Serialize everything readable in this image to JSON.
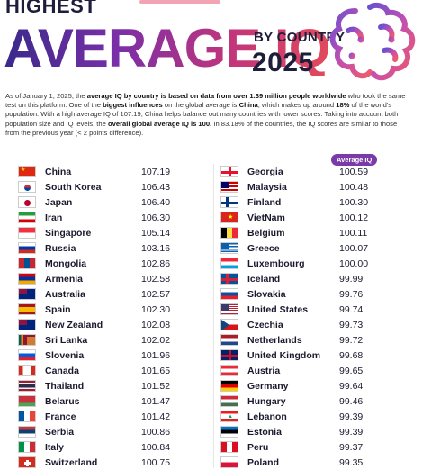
{
  "header": {
    "kicker": "HIGHEST",
    "headline": "AVERAGE IQ",
    "subtitle": "BY COUNTRY",
    "year": "2025"
  },
  "intro": {
    "p1": "As of January 1, 2025, the ",
    "b1": "average IQ by country is based on data from over 1.39 million people worldwide",
    "p2": " who took the same test on this platform. One of the ",
    "b2": "biggest influences",
    "p3": " on the global average is ",
    "b3": "China",
    "p4": ", which makes up around ",
    "b4": "18%",
    "p5": " of the world's population. With a high average IQ of 107.19, China helps balance out many countries with lower scores. Taking into account both population size and IQ levels, the ",
    "b5": "overall global average IQ is 100.",
    "p6": " In 83.18% of the countries, the IQ scores are similar to those from the previous year (< 2 points difference)."
  },
  "column_label": "Average IQ",
  "left_rows": [
    {
      "country": "China",
      "iq": "107.19",
      "flag": "china"
    },
    {
      "country": "South Korea",
      "iq": "106.43",
      "flag": "south-korea"
    },
    {
      "country": "Japan",
      "iq": "106.40",
      "flag": "japan"
    },
    {
      "country": "Iran",
      "iq": "106.30",
      "flag": "iran"
    },
    {
      "country": "Singapore",
      "iq": "105.14",
      "flag": "singapore"
    },
    {
      "country": "Russia",
      "iq": "103.16",
      "flag": "russia"
    },
    {
      "country": "Mongolia",
      "iq": "102.86",
      "flag": "mongolia"
    },
    {
      "country": "Armenia",
      "iq": "102.58",
      "flag": "armenia"
    },
    {
      "country": "Australia",
      "iq": "102.57",
      "flag": "australia"
    },
    {
      "country": "Spain",
      "iq": "102.30",
      "flag": "spain"
    },
    {
      "country": "New Zealand",
      "iq": "102.08",
      "flag": "new-zealand"
    },
    {
      "country": "Sri Lanka",
      "iq": "102.02",
      "flag": "sri-lanka"
    },
    {
      "country": "Slovenia",
      "iq": "101.96",
      "flag": "slovenia"
    },
    {
      "country": "Canada",
      "iq": "101.65",
      "flag": "canada"
    },
    {
      "country": "Thailand",
      "iq": "101.52",
      "flag": "thailand"
    },
    {
      "country": "Belarus",
      "iq": "101.47",
      "flag": "belarus"
    },
    {
      "country": "France",
      "iq": "101.42",
      "flag": "france"
    },
    {
      "country": "Serbia",
      "iq": "100.86",
      "flag": "serbia"
    },
    {
      "country": "Italy",
      "iq": "100.84",
      "flag": "italy"
    },
    {
      "country": "Switzerland",
      "iq": "100.75",
      "flag": "switzerland"
    }
  ],
  "right_rows": [
    {
      "country": "Georgia",
      "iq": "100.59",
      "flag": "georgia"
    },
    {
      "country": "Malaysia",
      "iq": "100.48",
      "flag": "malaysia"
    },
    {
      "country": "Finland",
      "iq": "100.30",
      "flag": "finland"
    },
    {
      "country": "VietNam",
      "iq": "100.12",
      "flag": "vietnam"
    },
    {
      "country": "Belgium",
      "iq": "100.11",
      "flag": "belgium"
    },
    {
      "country": "Greece",
      "iq": "100.07",
      "flag": "greece"
    },
    {
      "country": "Luxembourg",
      "iq": "100.00",
      "flag": "luxembourg"
    },
    {
      "country": "Iceland",
      "iq": "99.99",
      "flag": "iceland"
    },
    {
      "country": "Slovakia",
      "iq": "99.76",
      "flag": "slovakia"
    },
    {
      "country": "United States",
      "iq": "99.74",
      "flag": "united-states"
    },
    {
      "country": "Czechia",
      "iq": "99.73",
      "flag": "czechia"
    },
    {
      "country": "Netherlands",
      "iq": "99.72",
      "flag": "netherlands"
    },
    {
      "country": "United Kingdom",
      "iq": "99.68",
      "flag": "united-kingdom"
    },
    {
      "country": "Austria",
      "iq": "99.65",
      "flag": "austria"
    },
    {
      "country": "Germany",
      "iq": "99.64",
      "flag": "germany"
    },
    {
      "country": "Hungary",
      "iq": "99.46",
      "flag": "hungary"
    },
    {
      "country": "Lebanon",
      "iq": "99.39",
      "flag": "lebanon"
    },
    {
      "country": "Estonia",
      "iq": "99.39",
      "flag": "estonia"
    },
    {
      "country": "Peru",
      "iq": "99.37",
      "flag": "peru"
    },
    {
      "country": "Poland",
      "iq": "99.35",
      "flag": "poland"
    }
  ],
  "colors": {
    "gradient_start": "#3a2a8a",
    "gradient_end": "#e24a5b",
    "badge": "#7a3aa8"
  }
}
